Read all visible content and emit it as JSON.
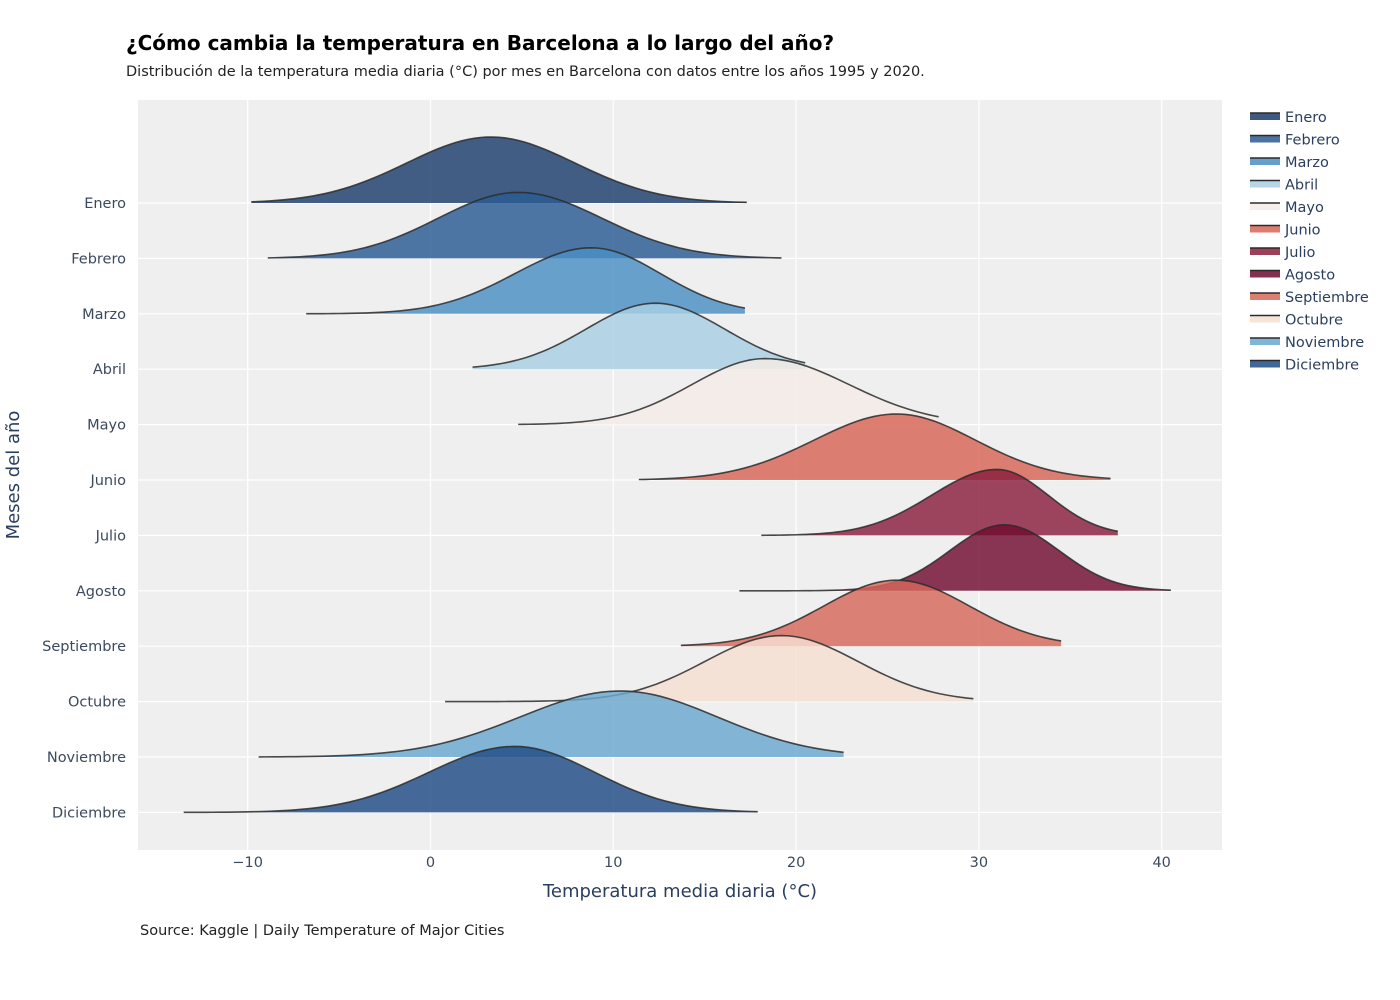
{
  "chart_data": {
    "type": "ridgeline",
    "title": "¿Cómo cambia la temperatura en Barcelona a lo largo del año?",
    "subtitle": "Distribución de la temperatura media diaria (°C) por mes en Barcelona  con datos entre los años 1995 y 2020.",
    "xlabel": "Temperatura media diaria (°C)",
    "ylabel": "Meses del año",
    "source": "Source: Kaggle | Daily Temperature of Major Cities",
    "xlim": [
      -16,
      43.3
    ],
    "x_ticks": [
      -10,
      0,
      10,
      20,
      30,
      40
    ],
    "x_tick_labels": [
      "−10",
      "0",
      "10",
      "20",
      "30",
      "40"
    ],
    "grid": true,
    "legend_position": "right",
    "series": [
      {
        "name": "Enero",
        "min": -9.8,
        "peak": 3.3,
        "max": 17.3,
        "spread_left": 4.6,
        "spread_right": 4.6,
        "color": "#1c3d6b"
      },
      {
        "name": "Febrero",
        "min": -8.9,
        "peak": 4.8,
        "max": 19.2,
        "spread_left": 4.4,
        "spread_right": 4.6,
        "color": "#2a5a92"
      },
      {
        "name": "Marzo",
        "min": -6.8,
        "peak": 8.8,
        "max": 17.2,
        "spread_left": 4.2,
        "spread_right": 3.8,
        "color": "#4a8fc4"
      },
      {
        "name": "Abril",
        "min": 2.3,
        "peak": 12.3,
        "max": 20.5,
        "spread_left": 3.8,
        "spread_right": 3.8,
        "color": "#a8cfe4"
      },
      {
        "name": "Mayo",
        "min": 4.8,
        "peak": 18.3,
        "max": 27.8,
        "spread_left": 4.0,
        "spread_right": 4.6,
        "color": "#f4ebe6"
      },
      {
        "name": "Junio",
        "min": 11.4,
        "peak": 25.5,
        "max": 37.2,
        "spread_left": 4.5,
        "spread_right": 4.3,
        "color": "#d76455"
      },
      {
        "name": "Julio",
        "min": 18.1,
        "peak": 31.0,
        "max": 37.6,
        "spread_left": 3.6,
        "spread_right": 2.8,
        "color": "#8a1d3e"
      },
      {
        "name": "Agosto",
        "min": 16.9,
        "peak": 31.4,
        "max": 40.5,
        "spread_left": 3.0,
        "spread_right": 3.0,
        "color": "#700c30"
      },
      {
        "name": "Septiembre",
        "min": 13.7,
        "peak": 25.5,
        "max": 34.5,
        "spread_left": 4.0,
        "spread_right": 4.0,
        "color": "#d5685a"
      },
      {
        "name": "Octubre",
        "min": 0.8,
        "peak": 19.2,
        "max": 29.7,
        "spread_left": 4.2,
        "spread_right": 4.2,
        "color": "#f5dfd2"
      },
      {
        "name": "Noviembre",
        "min": -9.4,
        "peak": 10.4,
        "max": 22.6,
        "spread_left": 5.5,
        "spread_right": 5.3,
        "color": "#6aa8d0"
      },
      {
        "name": "Diciembre",
        "min": -13.5,
        "peak": 4.6,
        "max": 17.9,
        "spread_left": 4.7,
        "spread_right": 4.4,
        "color": "#1f4c85"
      }
    ]
  }
}
